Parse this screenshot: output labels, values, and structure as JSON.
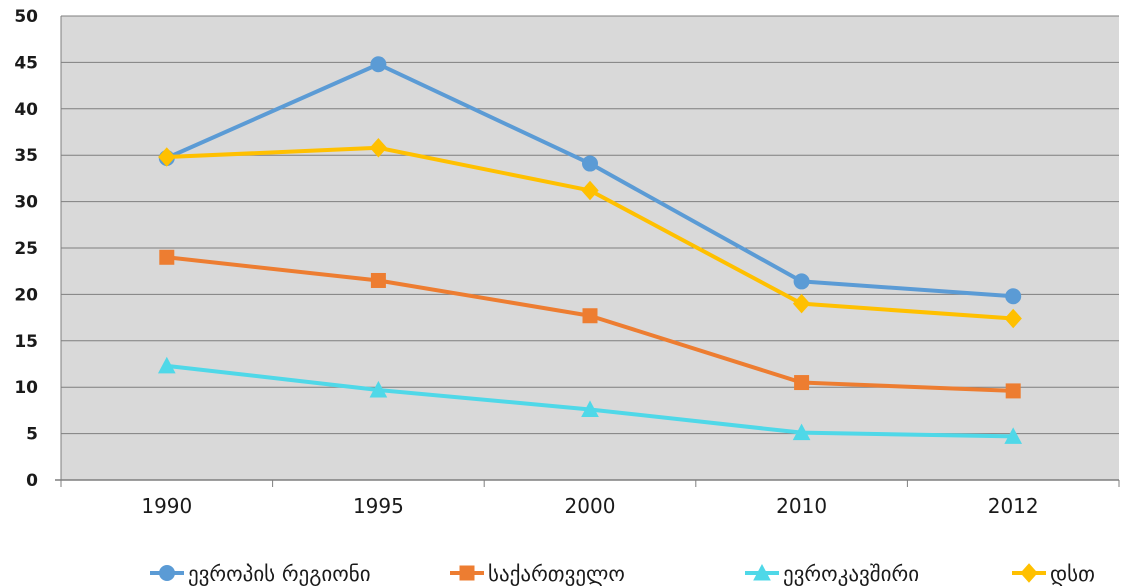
{
  "chart_data": {
    "type": "line",
    "title": "",
    "xlabel": "",
    "ylabel": "",
    "categories": [
      "1990",
      "1995",
      "2000",
      "2010",
      "2012"
    ],
    "ylim": [
      0,
      50
    ],
    "yticks": [
      0,
      5,
      10,
      15,
      20,
      25,
      30,
      35,
      40,
      45,
      50
    ],
    "grid": true,
    "legend_position": "bottom",
    "plot_background": "#d9d9d9",
    "series": [
      {
        "name": "ევროპის რეგიონი",
        "color": "#5b9bd5",
        "marker": "circle",
        "values": [
          34.7,
          44.8,
          34.1,
          21.4,
          19.8
        ]
      },
      {
        "name": "საქართველო",
        "color": "#ed7d31",
        "marker": "square",
        "values": [
          24.0,
          21.5,
          17.7,
          10.5,
          9.6
        ]
      },
      {
        "name": "ევროკავშირი",
        "color": "#4fd8e8",
        "marker": "triangle",
        "values": [
          12.3,
          9.7,
          7.6,
          5.1,
          4.7
        ]
      },
      {
        "name": "დსთ",
        "color": "#ffc000",
        "marker": "diamond",
        "values": [
          34.8,
          35.8,
          31.2,
          19.0,
          17.4
        ]
      }
    ]
  }
}
